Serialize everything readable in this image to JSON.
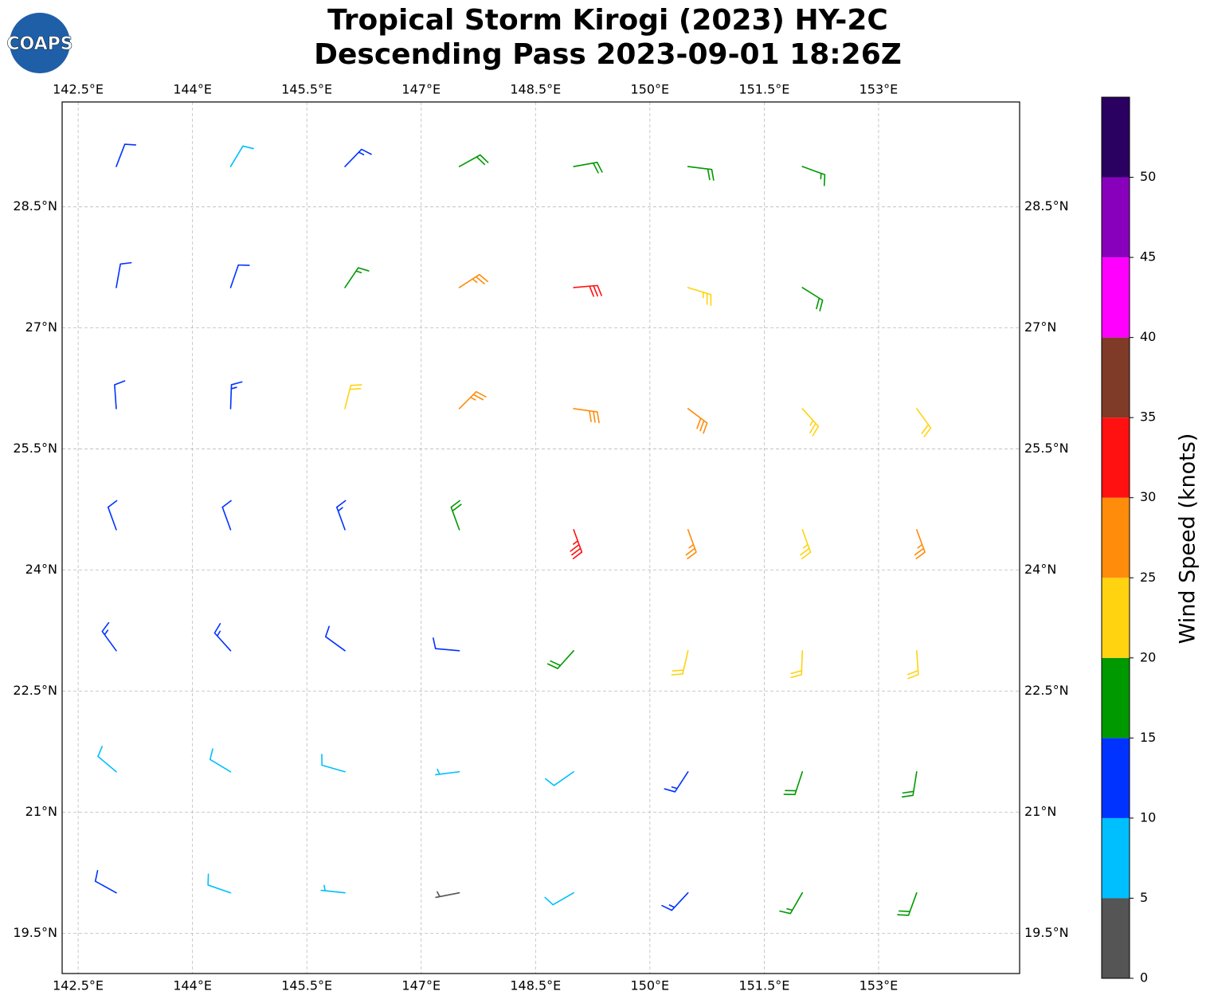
{
  "logo": "COAPS",
  "chart_data": {
    "type": "barbs",
    "title": [
      "Tropical Storm Kirogi (2023) HY-2C",
      "Descending Pass 2023-09-01 18:26Z"
    ],
    "xlim": [
      142.29,
      154.85
    ],
    "ylim": [
      19.0,
      29.8
    ],
    "xticks": [
      {
        "value": 142.5,
        "label": "142.5°E"
      },
      {
        "value": 144,
        "label": "144°E"
      },
      {
        "value": 145.5,
        "label": "145.5°E"
      },
      {
        "value": 147,
        "label": "147°E"
      },
      {
        "value": 148.5,
        "label": "148.5°E"
      },
      {
        "value": 150,
        "label": "150°E"
      },
      {
        "value": 151.5,
        "label": "151.5°E"
      },
      {
        "value": 153,
        "label": "153°E"
      }
    ],
    "yticks": [
      {
        "value": 19.5,
        "label": "19.5°N"
      },
      {
        "value": 21,
        "label": "21°N"
      },
      {
        "value": 22.5,
        "label": "22.5°N"
      },
      {
        "value": 24,
        "label": "24°N"
      },
      {
        "value": 25.5,
        "label": "25.5°N"
      },
      {
        "value": 27,
        "label": "27°N"
      },
      {
        "value": 28.5,
        "label": "28.5°N"
      }
    ],
    "grid": true,
    "x": [
      143,
      144.5,
      146,
      147.5,
      149,
      150.5,
      152,
      143,
      144.5,
      146,
      147.5,
      149,
      150.5,
      152,
      143,
      144.5,
      146,
      147.5,
      149,
      150.5,
      152,
      153.5,
      143,
      144.5,
      146,
      147.5,
      149,
      150.5,
      152,
      153.5,
      143,
      144.5,
      146,
      147.5,
      149,
      150.5,
      152,
      153.5,
      143,
      144.5,
      146,
      147.5,
      149,
      150.5,
      152,
      153.5,
      143,
      144.5,
      146,
      147.5,
      149,
      150.5,
      152,
      153.5
    ],
    "y": [
      29,
      29,
      29,
      29,
      29,
      29,
      29,
      27.5,
      27.5,
      27.5,
      27.5,
      27.5,
      27.5,
      27.5,
      26,
      26,
      26,
      26,
      26,
      26,
      26,
      26,
      24.5,
      24.5,
      24.5,
      24.5,
      24.5,
      24.5,
      24.5,
      24.5,
      23,
      23,
      23,
      23,
      23,
      23,
      23,
      23,
      21.5,
      21.5,
      21.5,
      21.5,
      21.5,
      21.5,
      21.5,
      21.5,
      20,
      20,
      20,
      20,
      20,
      20,
      20,
      20
    ],
    "speed": [
      12,
      8,
      13,
      18,
      19,
      18,
      17,
      12,
      12,
      16,
      27,
      32,
      24,
      18,
      12,
      13,
      22,
      27,
      28,
      28,
      24,
      22,
      12,
      12,
      13,
      18,
      33,
      27,
      24,
      27,
      13,
      13,
      11,
      12,
      18,
      21,
      22,
      22,
      9,
      8,
      8,
      7,
      8,
      13,
      18,
      18,
      12,
      8,
      7,
      3,
      9,
      14,
      17,
      18
    ],
    "direction": [
      21,
      31,
      44,
      61,
      80,
      97,
      110,
      10,
      19,
      34,
      57,
      85,
      107,
      122,
      356,
      2,
      14,
      45,
      98,
      127,
      138,
      144,
      340,
      340,
      340,
      340,
      160,
      160,
      160,
      160,
      324,
      318,
      306,
      275,
      222,
      193,
      182,
      176,
      310,
      301,
      286,
      263,
      235,
      213,
      198,
      189,
      299,
      289,
      276,
      259,
      240,
      223,
      210,
      200
    ],
    "colorbar": {
      "label": "Wind Speed (knots)",
      "bounds": [
        0,
        5,
        10,
        15,
        20,
        25,
        30,
        35,
        40,
        45,
        50,
        55
      ],
      "colors": [
        "#555555",
        "#00bfff",
        "#0033ff",
        "#009900",
        "#ffd30f",
        "#ff8c0a",
        "#ff1111",
        "#7f3b28",
        "#ff00ff",
        "#8800bb",
        "#2a0060"
      ],
      "ticks": [
        0,
        5,
        10,
        15,
        20,
        25,
        30,
        35,
        40,
        45,
        50
      ]
    }
  }
}
